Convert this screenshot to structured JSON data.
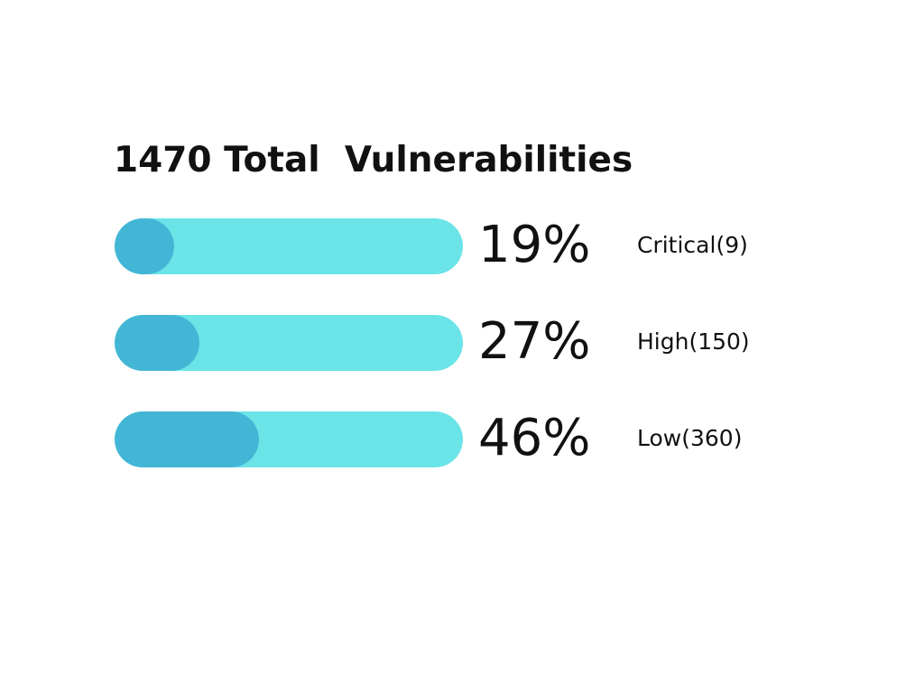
{
  "chart_data": {
    "type": "bar",
    "title": "1470 Total  Vulnerabilities",
    "categories": [
      "Critical(9)",
      "High(150)",
      "Low(360)"
    ],
    "values": [
      19,
      27,
      46
    ],
    "value_labels": [
      "19%",
      "27%",
      "46%"
    ],
    "series": [
      {
        "values": [
          19,
          27,
          46
        ]
      }
    ],
    "orientation": "horizontal",
    "xlim": [
      0,
      100
    ],
    "grid": false,
    "legend": "none"
  },
  "colors": {
    "track": "#6be4e8",
    "fill": "#43b6d6",
    "text": "#111111",
    "background": "#ffffff"
  }
}
